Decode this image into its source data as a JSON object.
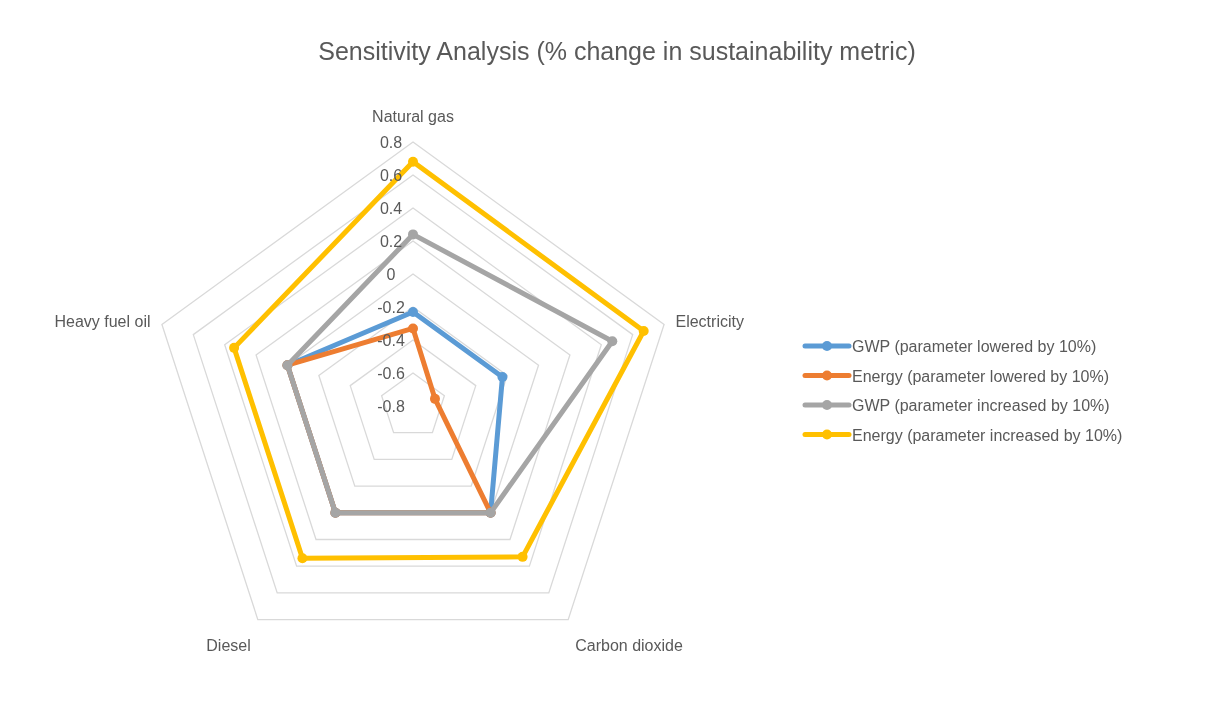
{
  "chart_data": {
    "type": "radar",
    "title": "Sensitivity Analysis (% change in sustainability metric)",
    "categories": [
      "Natural gas",
      "Electricity",
      "Carbon dioxide",
      "Diesel",
      "Heavy fuel oil"
    ],
    "series": [
      {
        "name": "GWP (parameter lowered by 10%)",
        "color": "#5b9bd5",
        "values": [
          -0.23,
          -0.23,
          0,
          0,
          0
        ]
      },
      {
        "name": "Energy (parameter lowered by 10%)",
        "color": "#ed7d31",
        "values": [
          -0.33,
          -0.66,
          0,
          0,
          0
        ]
      },
      {
        "name": "GWP (parameter increased by 10%)",
        "color": "#a5a5a5",
        "values": [
          0.24,
          0.47,
          0,
          0,
          0
        ]
      },
      {
        "name": "Energy (parameter increased by 10%)",
        "color": "#ffc000",
        "values": [
          0.68,
          0.67,
          0.33,
          0.34,
          0.34
        ]
      }
    ],
    "ylim": [
      -0.8,
      0.8
    ],
    "yticks": [
      -0.8,
      -0.6,
      -0.4,
      -0.2,
      0,
      0.2,
      0.4,
      0.6,
      0.8
    ],
    "grid": true,
    "legend": "right",
    "marker": "circle",
    "line_style": "solid"
  }
}
